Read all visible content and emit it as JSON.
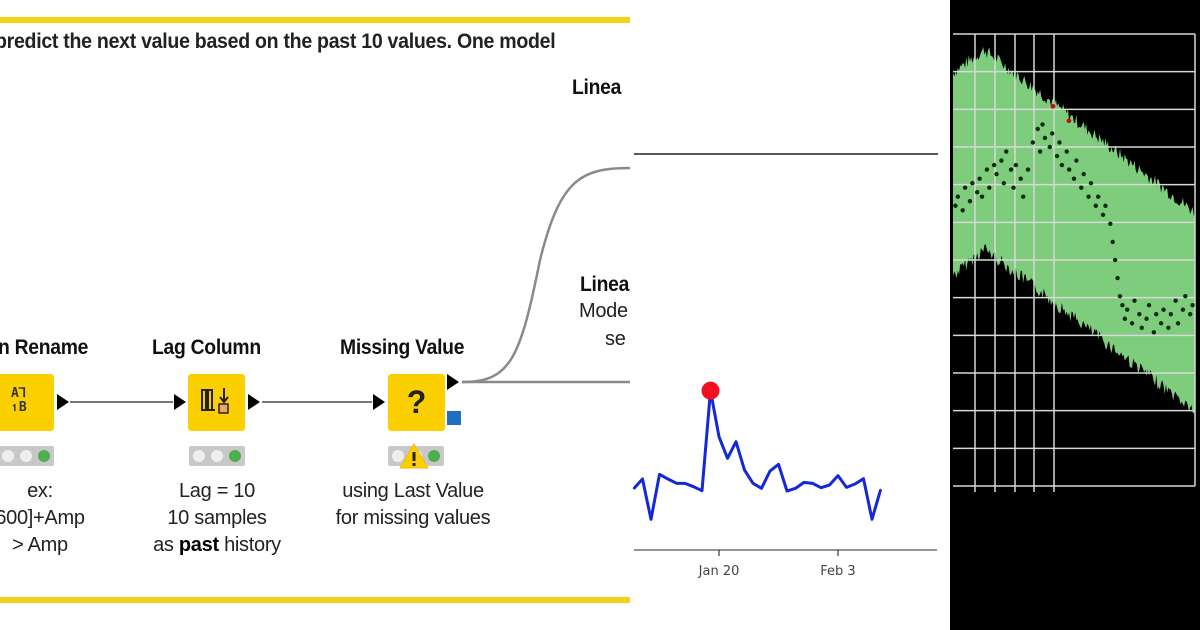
{
  "workflow": {
    "description": "predict the next value based on the past 10 values. One model",
    "nodes": [
      {
        "title": "n Rename",
        "desc": [
          "ex:",
          "600]+Amp",
          "> Amp"
        ],
        "icon": "column-rename-icon",
        "status": "executed"
      },
      {
        "title": "Lag Column",
        "desc": [
          "Lag = 10",
          "10 samples",
          "as ",
          "past",
          " history"
        ],
        "icon": "lag-column-icon",
        "status": "executed"
      },
      {
        "title": "Missing Value",
        "desc": [
          "using Last Value",
          "for missing values"
        ],
        "icon": "question-mark-icon",
        "icon_glyph": "?",
        "status": "executed-with-warning"
      }
    ],
    "right_nodes": {
      "top_title": "Linea",
      "bottom_title": "Linea",
      "bottom_desc": [
        "Mode",
        "se"
      ]
    },
    "colors": {
      "node": "#fcd000",
      "annotation_border": "#f5d21a",
      "status_ok": "#4caf50",
      "port_blue": "#1e6fbf"
    }
  },
  "chart_data": [
    {
      "type": "line",
      "x": [
        "Jan 10",
        "Jan 11",
        "Jan 12",
        "Jan 13",
        "Jan 14",
        "Jan 15",
        "Jan 16",
        "Jan 17",
        "Jan 18",
        "Jan 19",
        "Jan 20",
        "Jan 21",
        "Jan 22",
        "Jan 23",
        "Jan 24",
        "Jan 25",
        "Jan 26",
        "Jan 27",
        "Jan 28",
        "Jan 29",
        "Jan 30",
        "Jan 31",
        "Feb 1",
        "Feb 2",
        "Feb 3",
        "Feb 4",
        "Feb 5",
        "Feb 6",
        "Feb 7",
        "Feb 8"
      ],
      "values": [
        21.5,
        24.3,
        12.2,
        25.7,
        24.3,
        23.0,
        23.0,
        22.0,
        20.8,
        50.8,
        37.0,
        30.5,
        35.5,
        27.0,
        23.0,
        21.5,
        26.7,
        28.7,
        20.7,
        21.5,
        23.3,
        23.0,
        21.7,
        22.5,
        25.3,
        21.8,
        22.8,
        24.4,
        12.2,
        21.0
      ],
      "xticks": [
        "Jan 20",
        "Feb 3"
      ],
      "highlight": {
        "x": "Jan 19",
        "value": 50.8,
        "color": "#f0101e"
      },
      "line_color": "#1428d8",
      "ylim": [
        0,
        60
      ]
    },
    {
      "type": "scatter",
      "background": "#000000",
      "grid": true,
      "band_color": "#7dcd7d",
      "point_color": "#0f2a0f",
      "outlier_color": "#c01010",
      "xlim": [
        0,
        100
      ],
      "ylim": [
        0,
        100
      ],
      "band": {
        "x": [
          0,
          13,
          100
        ],
        "upper": [
          90,
          95,
          59
        ],
        "lower": [
          48,
          54,
          18
        ]
      },
      "points": [
        [
          1,
          62
        ],
        [
          2,
          64
        ],
        [
          4,
          61
        ],
        [
          5,
          66
        ],
        [
          7,
          63
        ],
        [
          8,
          67
        ],
        [
          10,
          65
        ],
        [
          11,
          68
        ],
        [
          12,
          64
        ],
        [
          14,
          70
        ],
        [
          15,
          66
        ],
        [
          17,
          71
        ],
        [
          18,
          69
        ],
        [
          20,
          72
        ],
        [
          21,
          67
        ],
        [
          22,
          74
        ],
        [
          24,
          70
        ],
        [
          25,
          66
        ],
        [
          26,
          71
        ],
        [
          28,
          68
        ],
        [
          29,
          64
        ],
        [
          31,
          70
        ],
        [
          33,
          76
        ],
        [
          35,
          79
        ],
        [
          36,
          74
        ],
        [
          37,
          80
        ],
        [
          38,
          77
        ],
        [
          40,
          75
        ],
        [
          41,
          78
        ],
        [
          43,
          73
        ],
        [
          44,
          76
        ],
        [
          45,
          71
        ],
        [
          47,
          74
        ],
        [
          48,
          70
        ],
        [
          50,
          68
        ],
        [
          51,
          72
        ],
        [
          53,
          66
        ],
        [
          54,
          69
        ],
        [
          56,
          64
        ],
        [
          57,
          67
        ],
        [
          59,
          62
        ],
        [
          60,
          64
        ],
        [
          62,
          60
        ],
        [
          63,
          62
        ],
        [
          65,
          58
        ],
        [
          66,
          54
        ],
        [
          67,
          50
        ],
        [
          68,
          46
        ],
        [
          69,
          42
        ],
        [
          70,
          40
        ],
        [
          71,
          37
        ],
        [
          72,
          39
        ],
        [
          74,
          36
        ],
        [
          75,
          41
        ],
        [
          77,
          38
        ],
        [
          78,
          35
        ],
        [
          80,
          37
        ],
        [
          81,
          40
        ],
        [
          83,
          34
        ],
        [
          84,
          38
        ],
        [
          86,
          36
        ],
        [
          87,
          39
        ],
        [
          89,
          35
        ],
        [
          90,
          38
        ],
        [
          92,
          41
        ],
        [
          93,
          36
        ],
        [
          95,
          39
        ],
        [
          96,
          42
        ],
        [
          98,
          38
        ],
        [
          99,
          40
        ]
      ],
      "outliers": [
        [
          41.3,
          84
        ],
        [
          47.9,
          80.8
        ]
      ]
    }
  ]
}
